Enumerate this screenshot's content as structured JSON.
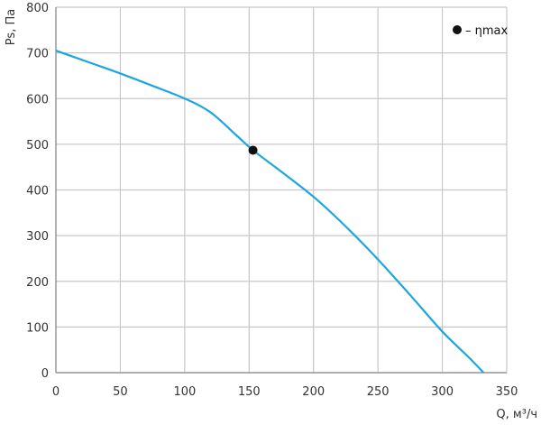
{
  "chart_data": {
    "type": "line",
    "xlabel": "Q, м³/ч",
    "ylabel": "Ps, Па",
    "xlim": [
      0,
      350
    ],
    "ylim": [
      0,
      800
    ],
    "x_ticks": [
      "0",
      "50",
      "100",
      "150",
      "200",
      "250",
      "300",
      "350"
    ],
    "y_ticks": [
      "0",
      "100",
      "200",
      "300",
      "400",
      "500",
      "600",
      "700",
      "800"
    ],
    "grid": true,
    "legend": {
      "placement": "top-right",
      "marker_label": "– ηmax"
    },
    "colors": {
      "curve": "#1aa7df",
      "grid": "#c8c8c8",
      "axis": "#888888",
      "marker": "#111111"
    },
    "series": [
      {
        "x": [
          0,
          25,
          50,
          75,
          100,
          120,
          140,
          153,
          175,
          200,
          225,
          250,
          275,
          300,
          320,
          332
        ],
        "y": [
          705,
          680,
          655,
          628,
          600,
          570,
          520,
          487,
          440,
          385,
          320,
          248,
          170,
          90,
          35,
          0
        ]
      }
    ],
    "markers": [
      {
        "x": 153,
        "y": 487
      }
    ]
  }
}
